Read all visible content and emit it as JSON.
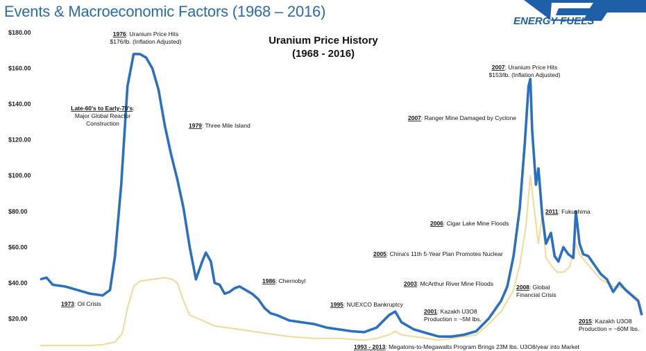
{
  "header": {
    "title": "Events & Macroeconomic Factors (1968 – 2016)",
    "logo_text_1": "ENERGY ",
    "logo_text_2": "FUELS"
  },
  "colors": {
    "nominal_line": "#2a6fc0",
    "real_line": "#f0dca0",
    "header_title": "#2a6bb0"
  },
  "chart_data": {
    "type": "line",
    "title_line1": "Uranium Price History",
    "title_line2": "(1968 - 2016)",
    "ylim": [
      0,
      180
    ],
    "yticks": [
      "$20.00",
      "$40.00",
      "$60.00",
      "$80.00",
      "$100.00",
      "$120.00",
      "$140.00",
      "$160.00",
      "$180.00"
    ],
    "ytick_values": [
      20,
      40,
      60,
      80,
      100,
      120,
      140,
      160,
      180
    ],
    "xlim": [
      1968,
      2016.3
    ],
    "grid": false,
    "series": [
      {
        "x": [
          1968,
          1968.5,
          1969,
          1970,
          1971,
          1972,
          1973,
          1973.6,
          1974,
          1974.5,
          1975,
          1975.5,
          1976,
          1976.5,
          1977,
          1977.5,
          1978,
          1978.5,
          1979,
          1979.5,
          1980,
          1980.5,
          1981,
          1981.3,
          1981.7,
          1982,
          1982.4,
          1982.8,
          1983.2,
          1983.6,
          1984,
          1984.5,
          1985,
          1985.5,
          1986,
          1986.5,
          1987,
          1988,
          1989,
          1990,
          1991,
          1992,
          1993,
          1994,
          1995,
          1996,
          1996.5,
          1997,
          1998,
          1999,
          2000,
          2001,
          2002,
          2003,
          2004,
          2005,
          2005.5,
          2006,
          2006.5,
          2006.9,
          2007.2,
          2007.35,
          2007.5,
          2007.8,
          2008,
          2008.3,
          2008.6,
          2009,
          2009.3,
          2009.6,
          2010,
          2010.4,
          2010.8,
          2011,
          2011.3,
          2011.6,
          2012,
          2012.5,
          2013,
          2013.5,
          2014,
          2014.5,
          2015,
          2015.5,
          2016,
          2016.3
        ],
        "y": [
          42,
          43,
          39,
          38,
          36,
          34,
          33,
          36,
          55,
          95,
          150,
          168,
          168,
          166,
          160,
          148,
          128,
          112,
          98,
          82,
          60,
          42,
          52,
          57,
          52,
          40,
          39,
          34,
          35,
          37,
          38,
          36,
          34,
          31,
          26,
          23,
          22,
          19,
          18,
          17,
          15,
          14,
          13,
          12.5,
          15,
          22,
          24,
          18,
          14,
          12,
          10,
          10,
          11,
          13,
          20,
          30,
          38,
          55,
          82,
          118,
          150,
          154,
          125,
          95,
          104,
          78,
          62,
          68,
          55,
          52,
          60,
          56,
          54,
          80,
          62,
          56,
          55,
          50,
          45,
          42,
          35,
          40,
          36,
          33,
          30,
          22
        ]
      },
      {
        "x": [
          1968,
          1970,
          1972,
          1973,
          1974,
          1974.6,
          1975,
          1975.5,
          1976,
          1977,
          1978,
          1978.6,
          1979,
          1979.5,
          1980,
          1982,
          1984,
          1986,
          1988,
          1990,
          1992,
          1994,
          1995,
          1996,
          1996.5,
          1997,
          1998,
          2000,
          2001,
          2002,
          2003,
          2004,
          2005,
          2006,
          2006.5,
          2007,
          2007.35,
          2007.6,
          2008,
          2008.3,
          2008.6,
          2009,
          2009.5,
          2010,
          2010.5,
          2011,
          2011.3,
          2012,
          2013,
          2014,
          2015,
          2016,
          2016.3
        ],
        "y": [
          5,
          5,
          5,
          5.5,
          7,
          12,
          26,
          38,
          41,
          42,
          43,
          42,
          40,
          30,
          22,
          16,
          14,
          12,
          10,
          9,
          9,
          8,
          9,
          11,
          13,
          11,
          10,
          8,
          9,
          10,
          11,
          17,
          24,
          36,
          50,
          72,
          100,
          85,
          62,
          78,
          54,
          50,
          46,
          46,
          49,
          62,
          56,
          50,
          42,
          38,
          37,
          31,
          25
        ]
      }
    ],
    "annotations": [
      {
        "year_text": "1976",
        "rest": ": Uranium Price Hits",
        "line2": "$176/lb. (Inflation Adjusted)"
      },
      {
        "year_text": "Late-60's to Early-70's",
        "rest": ":",
        "line2": "Major Global Reactor",
        "line3": "Construction"
      },
      {
        "year_text": "1979",
        "rest": ": Three Mile Island"
      },
      {
        "year_text": "1973",
        "rest": ": Oil Crisis"
      },
      {
        "year_text": "1986",
        "rest": ": Chernobyl"
      },
      {
        "year_text": "1995",
        "rest": ": NUEXCO Bankruptcy"
      },
      {
        "year_text": "2007",
        "rest": ": Uranium Price Hits",
        "line2": "$153/lb. (Inflation Adjusted)"
      },
      {
        "year_text": "2007",
        "rest": ": Ranger Mine Damaged by Cyclone"
      },
      {
        "year_text": "2011",
        "rest": ": Fukushima"
      },
      {
        "year_text": "2006",
        "rest": ": Cigar Lake Mine Floods"
      },
      {
        "year_text": "2005",
        "rest": ":  China's 11th 5-Year Plan Promotes Nuclear"
      },
      {
        "year_text": "2003",
        "rest": ": McArthur River Mine Floods"
      },
      {
        "year_text": "2008",
        "rest": ": Global",
        "line2": "Financial Crisis"
      },
      {
        "year_text": "2001",
        "rest": ": Kazakh U3O8",
        "line2": "Production = ~5M lbs."
      },
      {
        "year_text": "2015",
        "rest": ": Kazakh U3O8",
        "line2": "Production = ~60M lbs."
      },
      {
        "year_text": "1993 - 2013",
        "rest": ": Megatons-to-Megawatts Program Brings 23M lbs. U3O8/year into Market"
      }
    ]
  }
}
